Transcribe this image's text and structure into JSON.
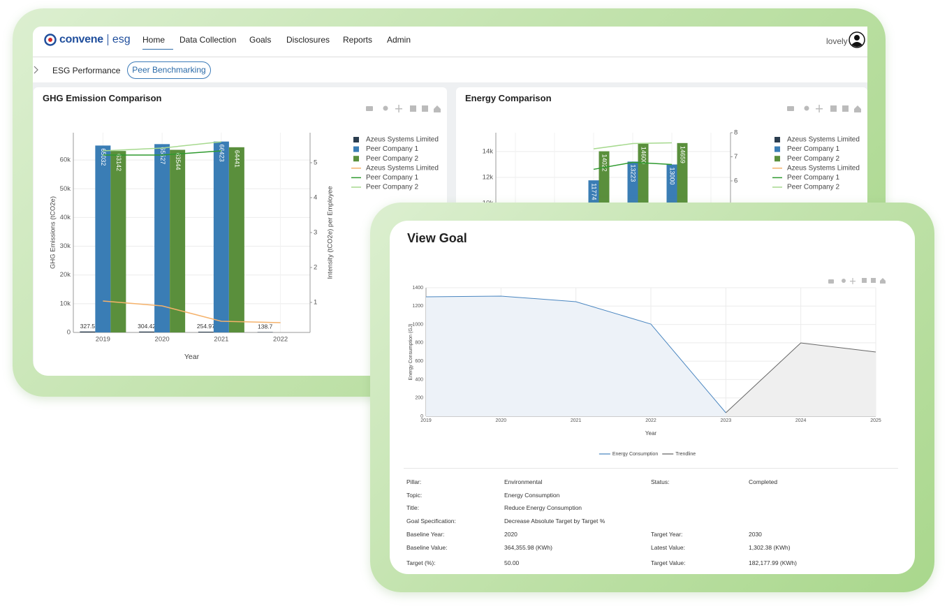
{
  "header": {
    "logo": "convene",
    "logo_suffix": "esg",
    "nav": [
      "Home",
      "Data Collection",
      "Goals",
      "Disclosures",
      "Reports",
      "Admin"
    ],
    "user": "lovely"
  },
  "tabs": [
    "ESG Performance",
    "Peer Benchmarking"
  ],
  "chart_data": [
    {
      "type": "bar",
      "title": "GHG Emission Comparison",
      "x_label": "Year",
      "y_label": "GHG Emissions (tCO2e)",
      "y2_label": "Intensity (tCO2e) per Employee",
      "categories": [
        "2019",
        "2020",
        "2021",
        "2022"
      ],
      "series": [
        {
          "name": "Azeus Systems Limited",
          "mode": "bar",
          "color": "#2b3d4f",
          "values": [
            327.5,
            304.42,
            254.97,
            138.7
          ]
        },
        {
          "name": "Peer Company 1",
          "mode": "bar",
          "color": "#3a7db5",
          "values": [
            65032,
            65527,
            66423,
            null
          ]
        },
        {
          "name": "Peer Company 2",
          "mode": "bar",
          "color": "#5a8f3c",
          "values": [
            63142,
            63544,
            64441,
            null
          ]
        },
        {
          "name": "Azeus Systems Limited",
          "mode": "line",
          "axis": "y2",
          "color": "#f5b26b",
          "values": [
            1.04,
            0.9,
            0.46,
            0.42
          ]
        },
        {
          "name": "Peer Company 1",
          "mode": "line",
          "axis": "y2",
          "color": "#2e9a2e",
          "values": [
            5.22,
            5.22,
            5.34,
            null
          ]
        },
        {
          "name": "Peer Company 2",
          "mode": "line",
          "axis": "y2",
          "color": "#a6d98e",
          "values": [
            5.34,
            5.42,
            5.6,
            null
          ]
        }
      ],
      "ylim": [
        0,
        69500
      ],
      "yticks": [
        0,
        {
          "value": 10000,
          "label": "10k"
        },
        {
          "value": 20000,
          "label": "20k"
        },
        {
          "value": 30000,
          "label": "30k"
        },
        {
          "value": 40000,
          "label": "40k"
        },
        {
          "value": 50000,
          "label": "50k"
        },
        {
          "value": 60000,
          "label": "60k"
        }
      ],
      "y2lim": [
        0.14,
        5.86
      ],
      "y2ticks": [
        1,
        2,
        3,
        4,
        5
      ],
      "grid": true,
      "data_labels": true,
      "legend": "right"
    },
    {
      "type": "bar",
      "title": "Energy Comparison",
      "categories": [
        null,
        null,
        null,
        null,
        null,
        null
      ],
      "series": [
        {
          "name": "Azeus Systems Limited",
          "mode": "bar",
          "color": "#2b3d4f",
          "values": [
            null,
            null,
            null,
            null,
            null,
            null
          ]
        },
        {
          "name": "Peer Company 1",
          "mode": "bar",
          "color": "#3a7db5",
          "values": [
            null,
            null,
            11774,
            13223,
            13000,
            null
          ]
        },
        {
          "name": "Peer Company 2",
          "mode": "bar",
          "color": "#5a8f3c",
          "values": [
            null,
            null,
            14022,
            14600,
            14659,
            null
          ]
        },
        {
          "name": "Azeus Systems Limited",
          "mode": "line",
          "axis": "y2",
          "color": "#f5b26b",
          "values": [
            null,
            null,
            null,
            null,
            null,
            null
          ]
        },
        {
          "name": "Peer Company 1",
          "mode": "line",
          "axis": "y2",
          "color": "#2e9a2e",
          "values": [
            null,
            null,
            6.48,
            6.77,
            6.68,
            null
          ]
        },
        {
          "name": "Peer Company 2",
          "mode": "line",
          "axis": "y2",
          "color": "#a6d98e",
          "values": [
            null,
            null,
            7.33,
            7.55,
            7.58,
            null
          ]
        }
      ],
      "ylim": [
        0,
        15460
      ],
      "yticks": [
        {
          "value": 10000,
          "label": "10k"
        },
        {
          "value": 12000,
          "label": "12k"
        },
        {
          "value": 14000,
          "label": "14k"
        }
      ],
      "y2lim": [
        -0.29,
        8
      ],
      "y2ticks": [
        6,
        7,
        8
      ],
      "grid": true,
      "data_labels": true,
      "legend": "right"
    },
    {
      "type": "line",
      "title": "View Goal",
      "x_label": "Year",
      "y_label": "Energy Consumption (GJ)",
      "x": [
        2019,
        2020,
        2021,
        2022,
        2023,
        2024,
        2025
      ],
      "series": [
        {
          "name": "Energy Consumption",
          "color": "#4a86c0",
          "fill": "#edf2f8",
          "values": [
            1301,
            1309,
            1248,
            1004,
            38,
            null,
            null
          ]
        },
        {
          "name": "Trendline",
          "color": "#666666",
          "fill": "#efefef",
          "values": [
            null,
            null,
            null,
            null,
            38,
            799,
            700
          ]
        }
      ],
      "xlim": [
        2019,
        2025
      ],
      "xticks": [
        2019,
        2020,
        2021,
        2022,
        2023,
        2024,
        2025
      ],
      "ylim": [
        0,
        1400
      ],
      "yticks": [
        0,
        200,
        400,
        600,
        800,
        1000,
        1200,
        1400
      ],
      "grid": true,
      "legend": "bottom"
    }
  ],
  "goal_details": {
    "rows": [
      [
        "Pillar:",
        "Environmental",
        "Status:",
        "Completed"
      ],
      [
        "Topic:",
        "Energy Consumption"
      ],
      [
        "Title:",
        "Reduce Energy Consumption"
      ],
      [
        "Goal Specification:",
        "Decrease Absolute Target by Target %"
      ],
      [
        "Baseline Year:",
        "2020",
        "Target Year:",
        "2030"
      ],
      [
        "Baseline Value:",
        "364,355.98 (KWh)",
        "Latest Value:",
        "1,302.38 (KWh)"
      ],
      [
        "Target (%):",
        "50.00",
        "Target Value:",
        "182,177.99 (KWh)"
      ]
    ]
  }
}
